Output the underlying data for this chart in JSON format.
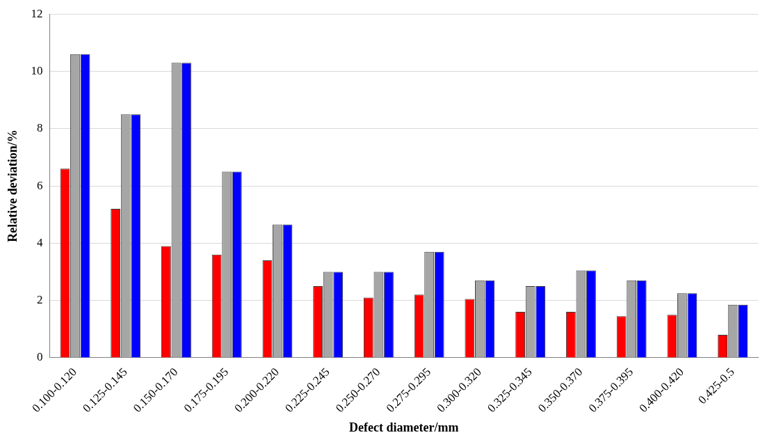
{
  "chart_data": {
    "type": "bar",
    "xlabel": "Defect diameter/mm",
    "ylabel": "Relative deviation/%",
    "categories": [
      "0.100-0.120",
      "0.125-0.145",
      "0.150-0.170",
      "0.175-0.195",
      "0.200-0.220",
      "0.225-0.245",
      "0.250-0.270",
      "0.275-0.295",
      "0.300-0.320",
      "0.325-0.345",
      "0.350-0.370",
      "0.375-0.395",
      "0.400-0.420",
      "0.425-0.5"
    ],
    "series": [
      {
        "color": "#ff0000",
        "values": [
          6.6,
          5.2,
          3.9,
          3.6,
          3.4,
          2.5,
          2.1,
          2.2,
          2.05,
          1.6,
          1.6,
          1.45,
          1.5,
          0.8
        ]
      },
      {
        "color": "#a6a6a6",
        "values": [
          10.6,
          8.5,
          10.3,
          6.5,
          4.65,
          3.0,
          3.0,
          3.7,
          2.7,
          2.5,
          3.05,
          2.7,
          2.25,
          1.85
        ]
      },
      {
        "color": "#0000ff",
        "values": [
          10.6,
          8.5,
          10.3,
          6.5,
          4.65,
          3.0,
          3.0,
          3.7,
          2.7,
          2.5,
          3.05,
          2.7,
          2.25,
          1.85
        ]
      }
    ],
    "ylim": [
      0,
      12
    ],
    "yticks": [
      0,
      2,
      4,
      6,
      8,
      10,
      12
    ],
    "grid": "y"
  }
}
